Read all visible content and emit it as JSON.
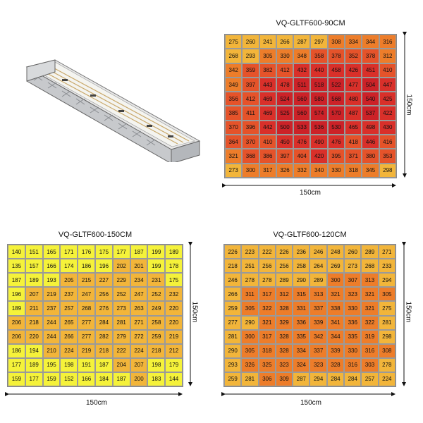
{
  "maps": [
    {
      "id": "map-90",
      "title": "VQ-GLTF600-90CM",
      "width_label": "150cm",
      "height_label": "150cm",
      "rows": [
        [
          275,
          260,
          241,
          266,
          287,
          297,
          308,
          334,
          344,
          316
        ],
        [
          268,
          293,
          305,
          330,
          348,
          358,
          378,
          352,
          378,
          312
        ],
        [
          342,
          359,
          382,
          412,
          432,
          440,
          458,
          426,
          451,
          410
        ],
        [
          349,
          397,
          443,
          478,
          511,
          518,
          522,
          477,
          504,
          447
        ],
        [
          356,
          412,
          469,
          524,
          560,
          580,
          568,
          480,
          540,
          425
        ],
        [
          385,
          411,
          469,
          525,
          560,
          574,
          570,
          487,
          537,
          422
        ],
        [
          370,
          396,
          442,
          500,
          533,
          536,
          530,
          465,
          498,
          430
        ],
        [
          364,
          370,
          410,
          450,
          476,
          490,
          476,
          418,
          446,
          416
        ],
        [
          321,
          368,
          386,
          397,
          404,
          420,
          395,
          371,
          380,
          353
        ],
        [
          273,
          300,
          317,
          326,
          332,
          340,
          330,
          318,
          345,
          298
        ]
      ]
    },
    {
      "id": "map-150",
      "title": "VQ-GLTF600-150CM",
      "width_label": "150cm",
      "height_label": "150cm",
      "rows": [
        [
          140,
          151,
          165,
          171,
          176,
          175,
          177,
          187,
          199,
          189
        ],
        [
          135,
          157,
          166,
          174,
          186,
          196,
          202,
          201,
          199,
          178
        ],
        [
          187,
          189,
          193,
          205,
          215,
          227,
          229,
          234,
          231,
          175
        ],
        [
          196,
          207,
          219,
          237,
          247,
          256,
          252,
          247,
          252,
          232
        ],
        [
          189,
          211,
          237,
          257,
          268,
          276,
          273,
          263,
          249,
          220
        ],
        [
          206,
          218,
          244,
          265,
          277,
          284,
          281,
          271,
          258,
          220
        ],
        [
          206,
          220,
          244,
          266,
          277,
          282,
          279,
          272,
          259,
          219
        ],
        [
          186,
          194,
          210,
          224,
          219,
          218,
          222,
          224,
          218,
          212
        ],
        [
          177,
          189,
          195,
          198,
          191,
          187,
          204,
          207,
          198,
          179
        ],
        [
          159,
          177,
          159,
          152,
          166,
          184,
          187,
          200,
          183,
          144
        ]
      ]
    },
    {
      "id": "map-120",
      "title": "VQ-GLTF600-120CM",
      "width_label": "150cm",
      "height_label": "150cm",
      "rows": [
        [
          226,
          223,
          222,
          226,
          236,
          246,
          248,
          260,
          289,
          271
        ],
        [
          218,
          251,
          256,
          256,
          258,
          264,
          269,
          273,
          268,
          233
        ],
        [
          246,
          278,
          278,
          289,
          290,
          289,
          300,
          307,
          313,
          294
        ],
        [
          266,
          311,
          317,
          312,
          315,
          313,
          321,
          323,
          321,
          305
        ],
        [
          259,
          305,
          322,
          328,
          331,
          337,
          338,
          330,
          321,
          275
        ],
        [
          277,
          290,
          321,
          329,
          336,
          339,
          341,
          336,
          322,
          281
        ],
        [
          281,
          300,
          317,
          328,
          335,
          342,
          344,
          335,
          319,
          298
        ],
        [
          290,
          305,
          318,
          328,
          334,
          337,
          339,
          330,
          316,
          308
        ],
        [
          293,
          326,
          325,
          323,
          324,
          323,
          328,
          316,
          303,
          278
        ],
        [
          259,
          281,
          306,
          309,
          287,
          294,
          284,
          284,
          257,
          224
        ]
      ]
    }
  ],
  "colors": {
    "yellow": "#f5f23a",
    "gold": "#f2b53a",
    "orange": "#ed7d2a",
    "red_orange": "#e5532a",
    "red": "#d9302a",
    "deep_red": "#cc2228"
  },
  "icons": {
    "fixture": "led-grow-light-bar-icon"
  }
}
